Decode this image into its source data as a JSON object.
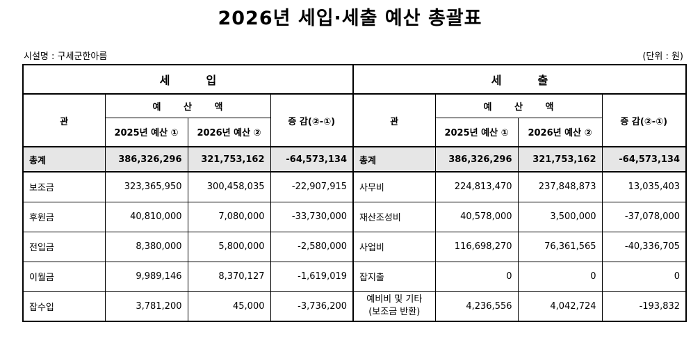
{
  "title": "2026년 세입·세출 예산 총괄표",
  "facility_label": "시설명 : 구세군한아름",
  "unit_label": "(단위 : 원)",
  "headers": {
    "revenue": "세입",
    "expenditure": "세출",
    "kwan": "관",
    "budget_amount": "예 산 액",
    "prev_budget": "2025년 예산 ①",
    "curr_budget": "2026년 예산 ②",
    "diff": "증  감(②-①)"
  },
  "total": {
    "rev_label": "총계",
    "rev_prev": "386,326,296",
    "rev_curr": "321,753,162",
    "rev_diff": "-64,573,134",
    "exp_label": "총계",
    "exp_prev": "386,326,296",
    "exp_curr": "321,753,162",
    "exp_diff": "-64,573,134"
  },
  "rows": [
    {
      "rev_label": "보조금",
      "rev_prev": "323,365,950",
      "rev_curr": "300,458,035",
      "rev_diff": "-22,907,915",
      "exp_label": "사무비",
      "exp_prev": "224,813,470",
      "exp_curr": "237,848,873",
      "exp_diff": "13,035,403"
    },
    {
      "rev_label": "후원금",
      "rev_prev": "40,810,000",
      "rev_curr": "7,080,000",
      "rev_diff": "-33,730,000",
      "exp_label": "재산조성비",
      "exp_prev": "40,578,000",
      "exp_curr": "3,500,000",
      "exp_diff": "-37,078,000"
    },
    {
      "rev_label": "전입금",
      "rev_prev": "8,380,000",
      "rev_curr": "5,800,000",
      "rev_diff": "-2,580,000",
      "exp_label": "사업비",
      "exp_prev": "116,698,270",
      "exp_curr": "76,361,565",
      "exp_diff": "-40,336,705"
    },
    {
      "rev_label": "이월금",
      "rev_prev": "9,989,146",
      "rev_curr": "8,370,127",
      "rev_diff": "-1,619,019",
      "exp_label": "잡지출",
      "exp_prev": "0",
      "exp_curr": "0",
      "exp_diff": "0"
    },
    {
      "rev_label": "잡수입",
      "rev_prev": "3,781,200",
      "rev_curr": "45,000",
      "rev_diff": "-3,736,200",
      "exp_label_line1": "예비비 및 기타",
      "exp_label_line2": "(보조금 반환)",
      "exp_prev": "4,236,556",
      "exp_curr": "4,042,724",
      "exp_diff": "-193,832"
    }
  ]
}
